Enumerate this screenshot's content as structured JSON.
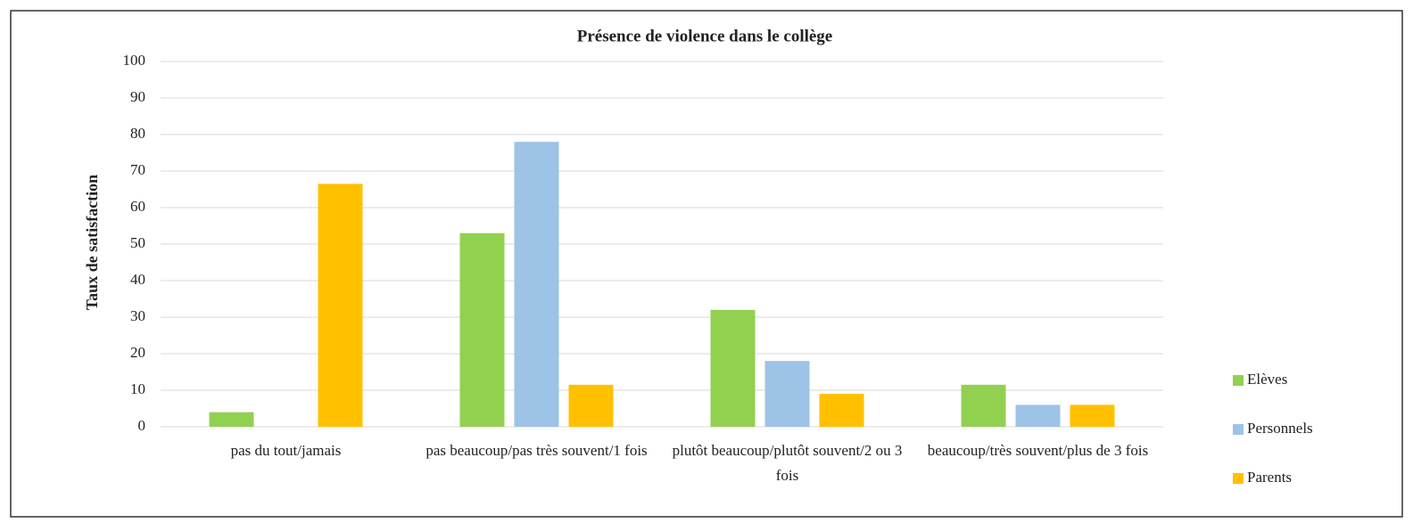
{
  "chart_data": {
    "type": "bar",
    "title": "Présence de violence dans le collège",
    "y_label": "Taux de satisfaction",
    "categories": [
      "pas du tout/jamais",
      "pas beaucoup/pas très souvent/1 fois",
      "plutôt beaucoup/plutôt souvent/2 ou 3 fois",
      "beaucoup/très souvent/plus de 3 fois"
    ],
    "series": [
      {
        "name": "Elèves",
        "color": "#92d050",
        "values": [
          4,
          53,
          32,
          11.5
        ]
      },
      {
        "name": "Personnels",
        "color": "#9dc3e6",
        "values": [
          0,
          78,
          18,
          6
        ]
      },
      {
        "name": "Parents",
        "color": "#ffc000",
        "values": [
          66.5,
          11.5,
          9,
          6
        ]
      }
    ],
    "ylim": [
      0,
      100
    ],
    "yticks": [
      0,
      10,
      20,
      30,
      40,
      50,
      60,
      70,
      80,
      90,
      100
    ],
    "grid": true,
    "legend": "right"
  }
}
